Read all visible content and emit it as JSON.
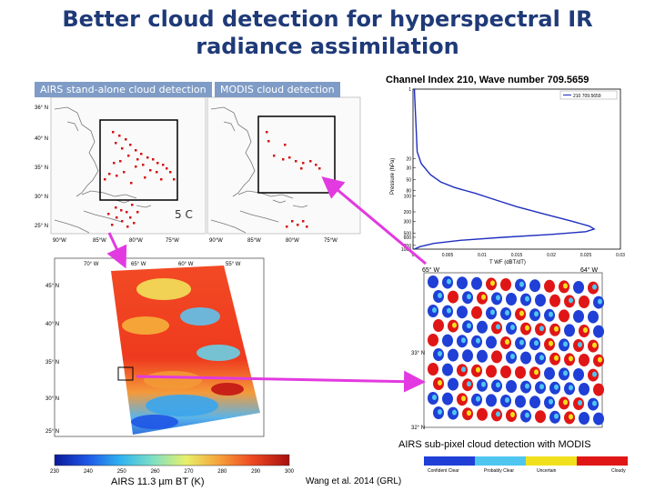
{
  "slide": {
    "title": "Better cloud detection for hyperspectral IR radiance assimilation",
    "citation": "Wang et al. 2014 (GRL)"
  },
  "panels": {
    "airs_standalone": {
      "label": "AIRS stand-alone cloud detection"
    },
    "modis": {
      "label": "MODIS cloud detection"
    },
    "map_lat_ticks": [
      "36° N",
      "40° N",
      "35° N",
      "30° N",
      "25° N"
    ],
    "map_lon_ticks": [
      "90°W",
      "85°W",
      "80°W",
      "75°W"
    ],
    "occluded_text": "5 C"
  },
  "chart_data": {
    "type": "line",
    "title": "Channel Index 210, Wave number 709.5659",
    "legend": "210 709.5659",
    "xlabel": "T WF (dBT/dT)",
    "ylabel": "Pressure (hPa)",
    "xlim": [
      0,
      0.03
    ],
    "ylim": [
      1000,
      1
    ],
    "x_ticks": [
      "0",
      "0.005",
      "0.01",
      "0.015",
      "0.02",
      "0.025",
      "0.03"
    ],
    "y_ticks": [
      "1",
      "20",
      "30",
      "50",
      "80",
      "100",
      "200",
      "300",
      "500",
      "600",
      "850",
      "1000"
    ],
    "series": [
      {
        "name": "210 709.5659",
        "points": [
          [
            0.0002,
            1
          ],
          [
            0.0006,
            15
          ],
          [
            0.0012,
            25
          ],
          [
            0.0025,
            40
          ],
          [
            0.004,
            55
          ],
          [
            0.006,
            70
          ],
          [
            0.009,
            90
          ],
          [
            0.012,
            120
          ],
          [
            0.015,
            160
          ],
          [
            0.019,
            220
          ],
          [
            0.023,
            300
          ],
          [
            0.0255,
            370
          ],
          [
            0.0262,
            420
          ],
          [
            0.025,
            470
          ],
          [
            0.02,
            530
          ],
          [
            0.013,
            600
          ],
          [
            0.007,
            680
          ],
          [
            0.003,
            780
          ],
          [
            0.001,
            900
          ],
          [
            0.0002,
            1000
          ]
        ]
      }
    ]
  },
  "bt_map": {
    "lat_ticks": [
      "45° N",
      "40° N",
      "35° N",
      "30° N",
      "25° N"
    ],
    "lon_ticks": [
      "70° W",
      "65° W",
      "60° W",
      "55° W"
    ],
    "colorbar_ticks": [
      "230",
      "240",
      "250",
      "260",
      "270",
      "280",
      "290",
      "300"
    ],
    "caption": "AIRS 11.3 µm BT (K)"
  },
  "subpixel": {
    "lon_ticks": [
      "65° W",
      "64° W"
    ],
    "lat_ticks": [
      "33° N",
      "32° N"
    ],
    "caption": "AIRS sub-pixel cloud detection with MODIS",
    "legend": [
      "Confident Clear",
      "Probably Clear",
      "Uncertain",
      "Cloudy"
    ],
    "legend_colors": [
      "#1f3fd6",
      "#4fc6f0",
      "#f0e11c",
      "#e01616"
    ]
  },
  "colors": {
    "title": "#1f3a78",
    "arrow": "#e23ae0",
    "profile_line": "#1f2fbf",
    "cloud_marker": "#d41414"
  }
}
